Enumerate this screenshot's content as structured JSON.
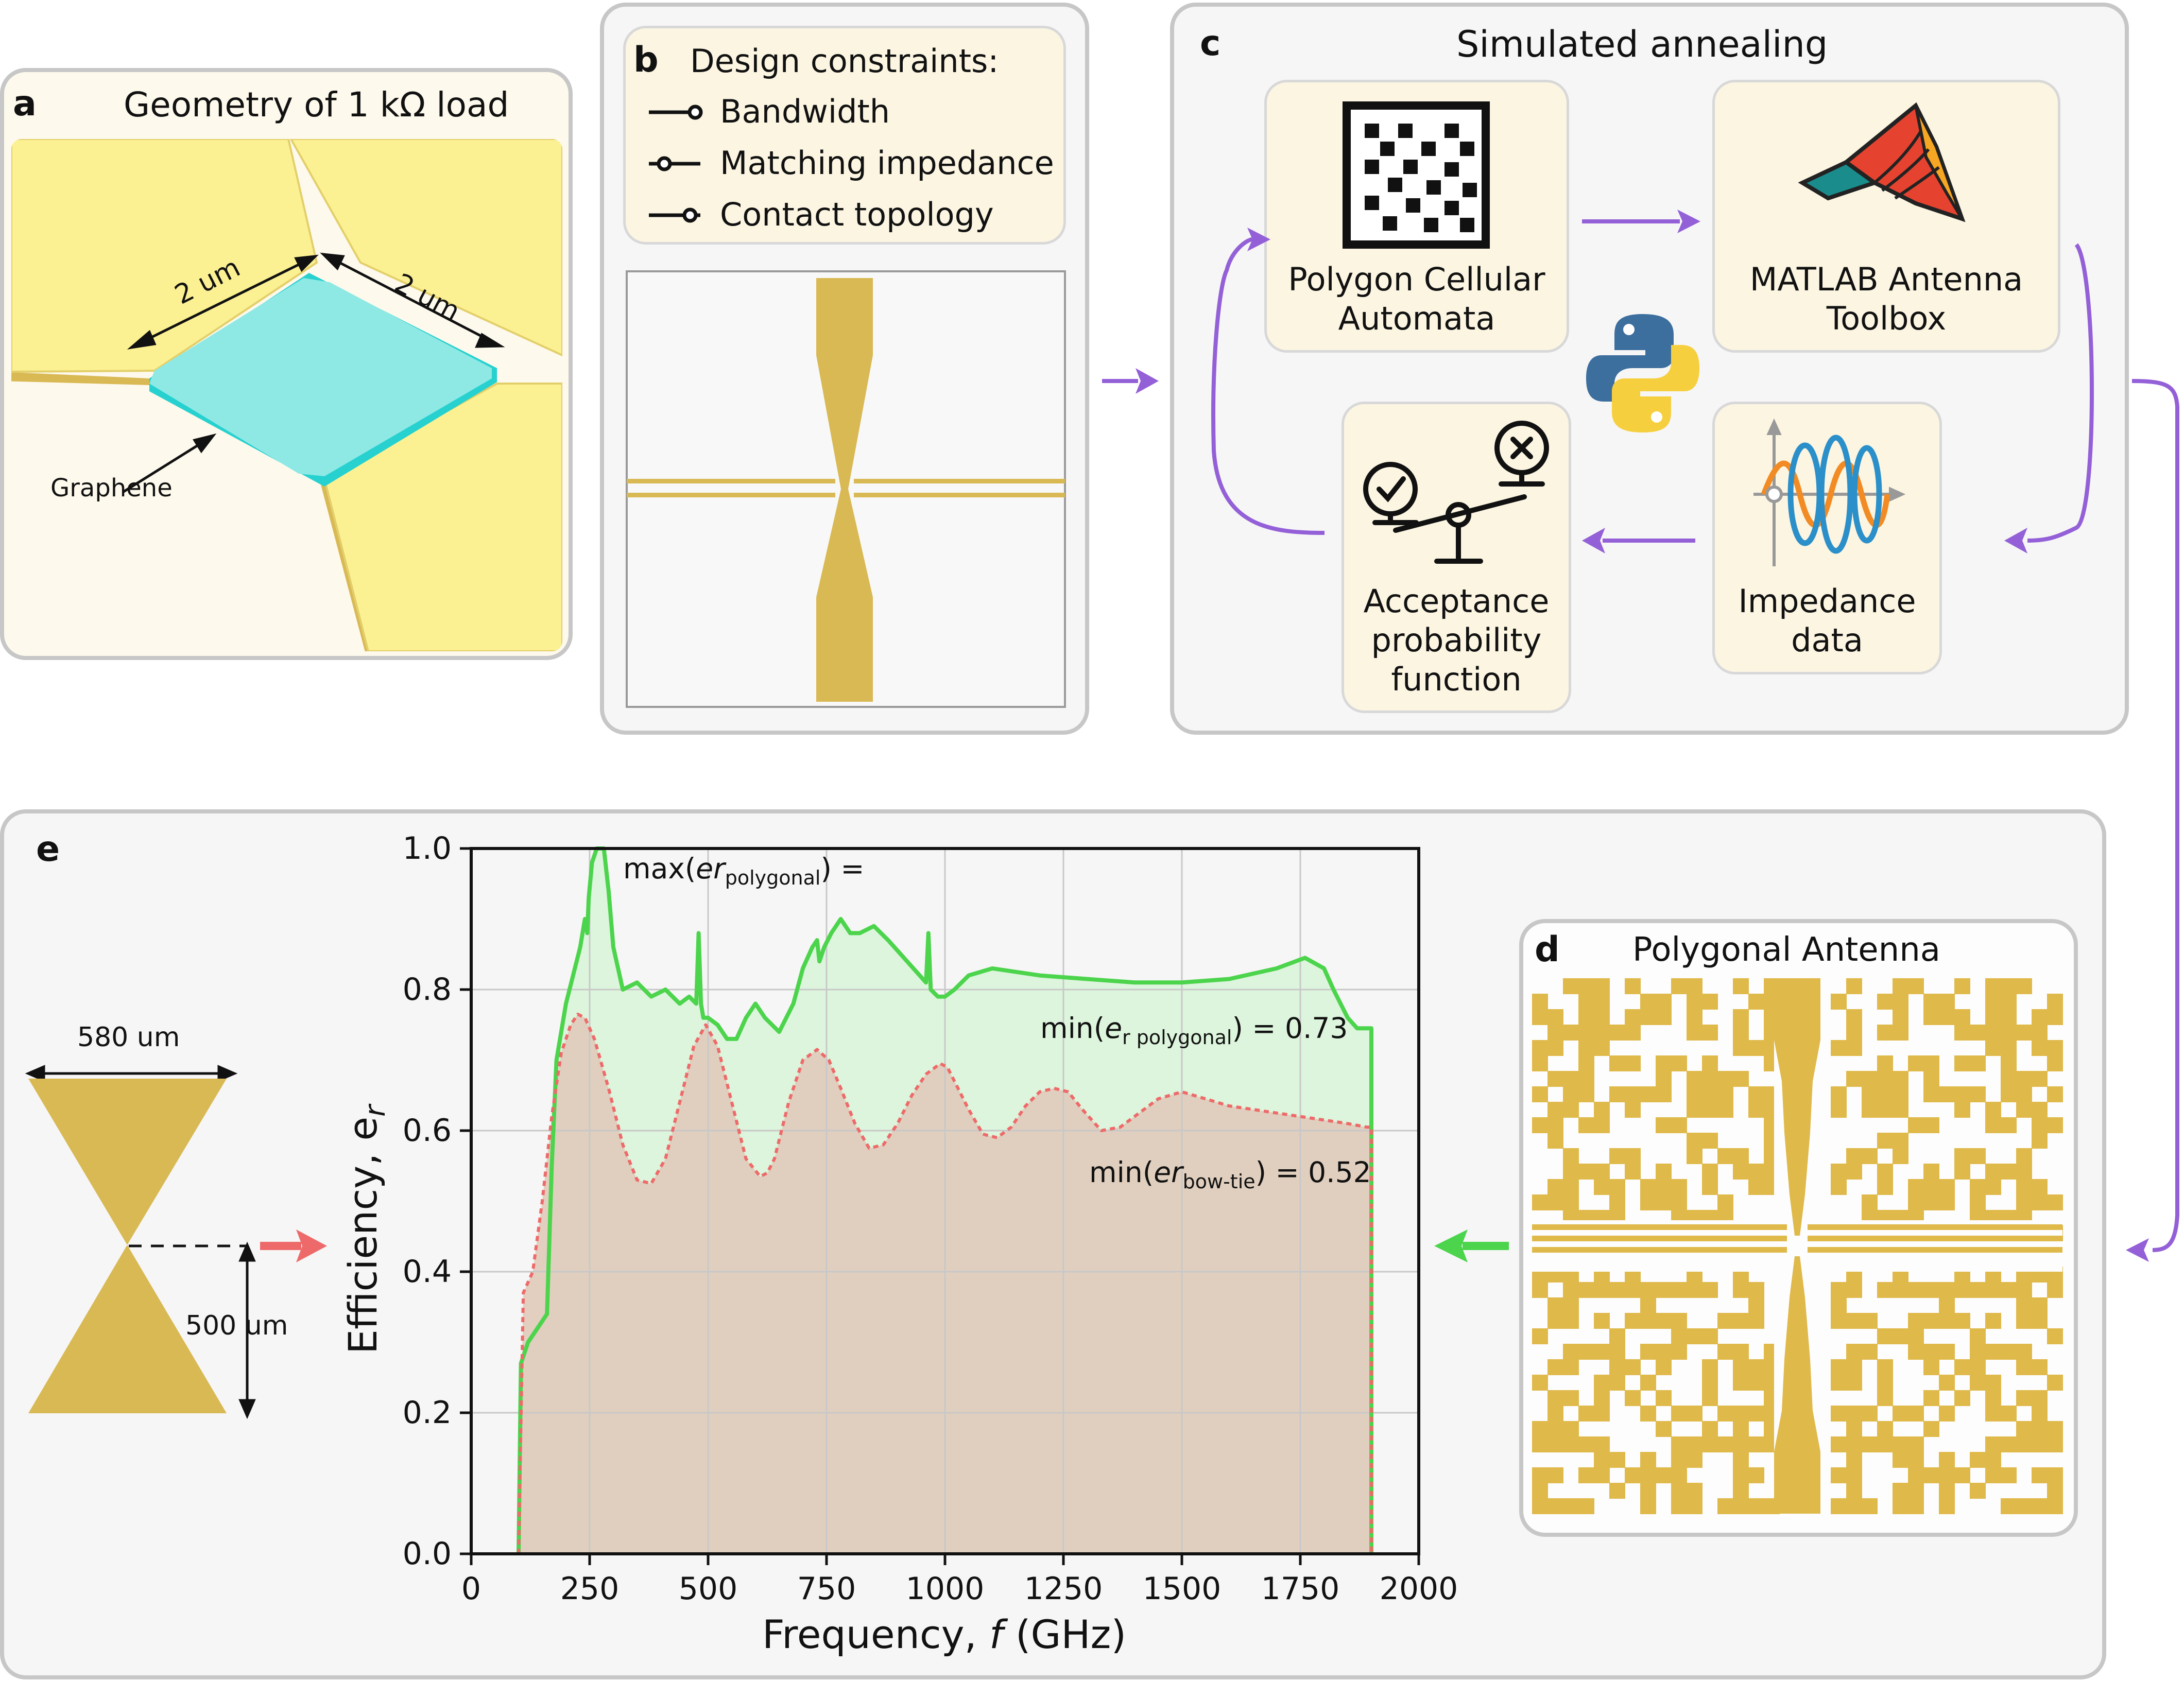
{
  "panel_a": {
    "letter": "a",
    "title": "Geometry of 1 kΩ load",
    "dim1": "2 um",
    "dim2": "2 um",
    "label": "Graphene"
  },
  "panel_b": {
    "letter": "b",
    "title": "Design constraints:",
    "constraints": [
      "Bandwidth",
      "Matching impedance",
      "Contact topology"
    ]
  },
  "panel_c": {
    "letter": "c",
    "title": "Simulated annealing",
    "box1_line1": "Polygon Cellular",
    "box1_line2": "Automata",
    "box2_line1": "MATLAB Antenna",
    "box2_line2": "Toolbox",
    "box3_line1": "Impedance",
    "box3_line2": "data",
    "box4_line1": "Acceptance",
    "box4_line2": "probability",
    "box4_line3": "function"
  },
  "panel_d": {
    "letter": "d",
    "title": "Polygonal Antenna"
  },
  "panel_e": {
    "letter": "e",
    "width_label": "580 um",
    "height_label": "500 um"
  },
  "chart_data": {
    "type": "area",
    "xlabel_text": "Frequency, ",
    "xlabel_var": "f",
    "xlabel_unit": " (GHz)",
    "ylabel": "Efficiency, e",
    "ylabel_sub": "r",
    "xlim": [
      0,
      2000
    ],
    "ylim": [
      0,
      1.0
    ],
    "x_ticks": [
      0,
      250,
      500,
      750,
      1000,
      1250,
      1500,
      1750,
      2000
    ],
    "y_ticks": [
      0.0,
      0.2,
      0.4,
      0.6,
      0.8,
      1.0
    ],
    "x_tick_labels": [
      "0",
      "250",
      "500",
      "750",
      "1000",
      "1250",
      "1500",
      "1750",
      "2000"
    ],
    "y_tick_labels": [
      "0.0",
      "0.2",
      "0.4",
      "0.6",
      "0.8",
      "1.0"
    ],
    "grid": true,
    "annotations": {
      "max_poly_pre": "max(",
      "max_poly_var": "er",
      "max_poly_sub": "polygonal",
      "max_poly_post": ") =",
      "min_poly_pre": "min(",
      "min_poly_var": "e",
      "min_poly_sub": "r polygonal",
      "min_poly_post": ") = 0.73",
      "min_bow_pre": "min(",
      "min_bow_var": "er",
      "min_bow_sub": "bow-tie",
      "min_bow_post": ") = 0.52"
    },
    "series": [
      {
        "color": "#4cd44c",
        "fill": "#dcf5dc",
        "x": [
          100,
          105,
          110,
          120,
          140,
          160,
          170,
          180,
          190,
          200,
          215,
          230,
          240,
          245,
          248,
          255,
          265,
          280,
          290,
          300,
          320,
          350,
          380,
          410,
          440,
          460,
          475,
          480,
          485,
          490,
          500,
          520,
          540,
          560,
          580,
          600,
          620,
          650,
          680,
          700,
          720,
          730,
          735,
          745,
          760,
          780,
          800,
          820,
          850,
          880,
          920,
          960,
          965,
          970,
          985,
          1000,
          1020,
          1050,
          1100,
          1200,
          1300,
          1400,
          1500,
          1600,
          1700,
          1760,
          1800,
          1820,
          1850,
          1870,
          1880,
          1900
        ],
        "y": [
          0.0,
          0.27,
          0.28,
          0.3,
          0.32,
          0.34,
          0.55,
          0.7,
          0.74,
          0.78,
          0.82,
          0.86,
          0.9,
          0.88,
          0.93,
          0.98,
          1.0,
          1.0,
          0.94,
          0.86,
          0.8,
          0.81,
          0.79,
          0.8,
          0.78,
          0.79,
          0.78,
          0.88,
          0.78,
          0.76,
          0.76,
          0.75,
          0.73,
          0.73,
          0.76,
          0.78,
          0.76,
          0.74,
          0.78,
          0.83,
          0.86,
          0.87,
          0.84,
          0.86,
          0.88,
          0.9,
          0.88,
          0.88,
          0.89,
          0.87,
          0.84,
          0.81,
          0.88,
          0.8,
          0.79,
          0.79,
          0.8,
          0.82,
          0.83,
          0.82,
          0.815,
          0.81,
          0.81,
          0.815,
          0.83,
          0.845,
          0.83,
          0.8,
          0.76,
          0.745,
          0.745,
          0.745
        ]
      },
      {
        "color": "#ee6a6a",
        "fill": "#e0cbbb",
        "x": [
          100,
          110,
          130,
          150,
          170,
          190,
          210,
          225,
          240,
          260,
          290,
          320,
          350,
          380,
          410,
          440,
          470,
          495,
          520,
          550,
          580,
          610,
          625,
          640,
          670,
          700,
          730,
          755,
          780,
          810,
          840,
          870,
          900,
          930,
          960,
          990,
          1005,
          1020,
          1050,
          1080,
          1110,
          1140,
          1170,
          1200,
          1230,
          1260,
          1290,
          1330,
          1370,
          1400,
          1450,
          1500,
          1550,
          1600,
          1650,
          1700,
          1750,
          1800,
          1850,
          1890,
          1900
        ],
        "y": [
          0.0,
          0.37,
          0.4,
          0.5,
          0.62,
          0.71,
          0.75,
          0.765,
          0.76,
          0.73,
          0.66,
          0.58,
          0.53,
          0.525,
          0.56,
          0.64,
          0.72,
          0.75,
          0.72,
          0.64,
          0.56,
          0.535,
          0.54,
          0.56,
          0.64,
          0.7,
          0.715,
          0.7,
          0.66,
          0.61,
          0.575,
          0.58,
          0.61,
          0.65,
          0.68,
          0.695,
          0.69,
          0.67,
          0.63,
          0.595,
          0.59,
          0.605,
          0.635,
          0.655,
          0.66,
          0.655,
          0.63,
          0.6,
          0.605,
          0.62,
          0.645,
          0.655,
          0.645,
          0.635,
          0.63,
          0.625,
          0.62,
          0.615,
          0.61,
          0.605,
          0.605
        ]
      }
    ]
  }
}
